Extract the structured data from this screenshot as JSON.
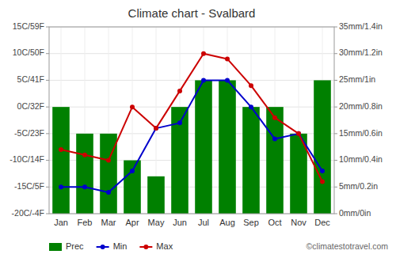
{
  "chart_data": {
    "type": "bar",
    "title": "Climate chart - Svalbard",
    "categories": [
      "Jan",
      "Feb",
      "Mar",
      "Apr",
      "May",
      "Jun",
      "Jul",
      "Aug",
      "Sep",
      "Oct",
      "Nov",
      "Dec"
    ],
    "series": [
      {
        "name": "Prec",
        "type": "bar",
        "axis": "y2",
        "color": "#008000",
        "values": [
          20,
          15,
          15,
          10,
          7,
          20,
          25,
          25,
          20,
          20,
          15,
          25
        ]
      },
      {
        "name": "Min",
        "type": "line",
        "color": "#0000cc",
        "marker": "circle",
        "values": [
          -15,
          -15,
          -16,
          -12,
          -4,
          -3,
          5,
          5,
          0,
          -6,
          -5,
          -12
        ]
      },
      {
        "name": "Max",
        "type": "line",
        "color": "#cc0000",
        "marker": "circle",
        "values": [
          -8,
          -9,
          -10,
          0,
          -4,
          3,
          10,
          9,
          4,
          -2,
          -5,
          -14
        ]
      }
    ],
    "ylim": [
      -20,
      15
    ],
    "yticks": [
      {
        "value": -20,
        "label": "-20C/-4F"
      },
      {
        "value": -15,
        "label": "-15C/5F"
      },
      {
        "value": -10,
        "label": "-10C/14F"
      },
      {
        "value": -5,
        "label": "-5C/23F"
      },
      {
        "value": 0,
        "label": "0C/32F"
      },
      {
        "value": 5,
        "label": "5C/41F"
      },
      {
        "value": 10,
        "label": "10C/50F"
      },
      {
        "value": 15,
        "label": "15C/59F"
      }
    ],
    "y2lim": [
      0,
      35
    ],
    "y2ticks": [
      {
        "value": 0,
        "label": "0mm/0in"
      },
      {
        "value": 5,
        "label": "5mm/0.2in"
      },
      {
        "value": 10,
        "label": "10mm/0.4in"
      },
      {
        "value": 15,
        "label": "15mm/0.6in"
      },
      {
        "value": 20,
        "label": "20mm/0.8in"
      },
      {
        "value": 25,
        "label": "25mm/1in"
      },
      {
        "value": 30,
        "label": "30mm/1.2in"
      },
      {
        "value": 35,
        "label": "35mm/1.4in"
      }
    ],
    "grid": true,
    "legend": "bottom left",
    "annotations": [
      "©climatestotravel.com"
    ]
  }
}
